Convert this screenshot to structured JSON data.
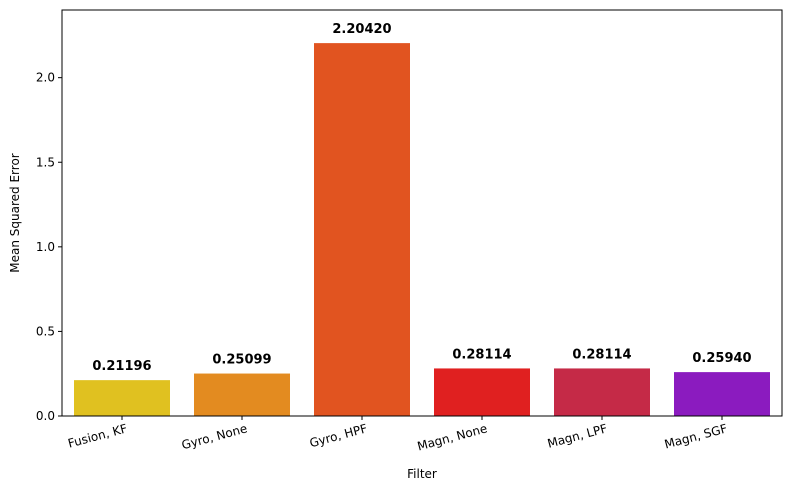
{
  "chart_data": {
    "type": "bar",
    "title": "",
    "xlabel": "Filter",
    "ylabel": "Mean Squared Error",
    "categories": [
      "Fusion, KF",
      "Gyro, None",
      "Gyro, HPF",
      "Magn, None",
      "Magn, LPF",
      "Magn, SGF"
    ],
    "values": [
      0.21196,
      0.25099,
      2.2042,
      0.28114,
      0.28114,
      0.2594
    ],
    "value_labels": [
      "0.21196",
      "0.25099",
      "2.20420",
      "0.28114",
      "0.28114",
      "0.25940"
    ],
    "colors": [
      "#e0c120",
      "#e38b20",
      "#e15420",
      "#e02020",
      "#c52a47",
      "#8b1bbf"
    ],
    "ylim": [
      0,
      2.4
    ],
    "yticks": [
      0.0,
      0.5,
      1.0,
      1.5,
      2.0
    ],
    "ytick_labels": [
      "0.0",
      "0.5",
      "1.0",
      "1.5",
      "2.0"
    ],
    "grid": false,
    "legend": "none"
  }
}
